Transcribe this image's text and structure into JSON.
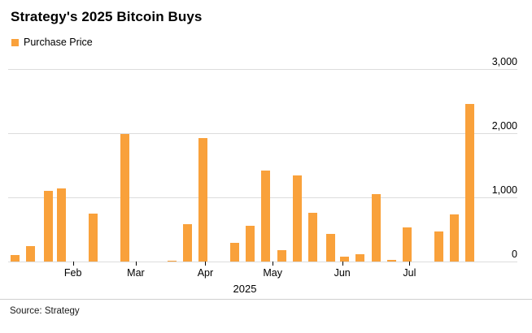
{
  "title": "Strategy's 2025 Bitcoin Buys",
  "legend": {
    "label": "Purchase Price",
    "color": "#F9A13B"
  },
  "xaxis_year": "2025",
  "source": "Source: Strategy",
  "chart_data": {
    "type": "bar",
    "title": "Strategy's 2025 Bitcoin Buys",
    "series_name": "Purchase Price",
    "legend_position": "top-left",
    "grid": "horizontal",
    "bar_color": "#F9A13B",
    "x": [
      "2025-01-06",
      "2025-01-13",
      "2025-01-21",
      "2025-01-27",
      "2025-02-10",
      "2025-02-24",
      "2025-03-17",
      "2025-03-24",
      "2025-03-31",
      "2025-04-14",
      "2025-04-21",
      "2025-04-28",
      "2025-05-05",
      "2025-05-12",
      "2025-05-19",
      "2025-05-27",
      "2025-06-02",
      "2025-06-09",
      "2025-06-16",
      "2025-06-23",
      "2025-06-30",
      "2025-07-14",
      "2025-07-21",
      "2025-07-28"
    ],
    "values": [
      101,
      243,
      1100,
      1140,
      742,
      1990,
      11,
      584,
      1920,
      286,
      556,
      1420,
      180,
      1340,
      765,
      427,
      75,
      110,
      1050,
      26,
      532,
      472,
      740,
      2460
    ],
    "months": [
      "Feb",
      "Mar",
      "Apr",
      "May",
      "Jun",
      "Jul"
    ],
    "xlabel": "2025",
    "ylabel": "",
    "ylim": [
      0,
      3000
    ],
    "ytick_values": [
      0,
      1000,
      2000,
      3000
    ],
    "ytick_labels": [
      "0",
      "1,000",
      "2,000",
      "3,000"
    ]
  }
}
